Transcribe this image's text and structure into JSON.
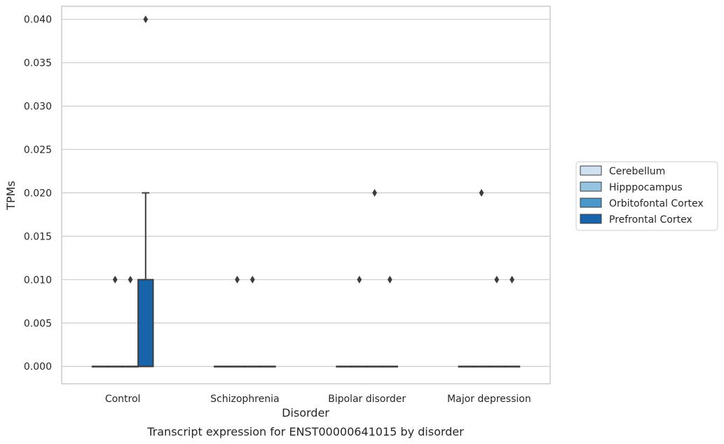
{
  "chart_data": {
    "type": "box",
    "title": "",
    "caption": "Transcript expression for ENST00000641015 by disorder",
    "xlabel": "Disorder",
    "ylabel": "TPMs",
    "categories": [
      "Control",
      "Schizophrenia",
      "Bipolar disorder",
      "Major depression"
    ],
    "ylim": [
      -0.002,
      0.0415
    ],
    "yticks": [
      0.0,
      0.005,
      0.01,
      0.015,
      0.02,
      0.025,
      0.03,
      0.035,
      0.04
    ],
    "ytick_labels": [
      "0.000",
      "0.005",
      "0.010",
      "0.015",
      "0.020",
      "0.025",
      "0.030",
      "0.035",
      "0.040"
    ],
    "grid": "horizontal",
    "legend_position": "right",
    "series": [
      {
        "name": "Cerebellum",
        "color": "#d0e1f2",
        "boxes": [
          {
            "category": "Control",
            "min": 0,
            "q1": 0,
            "median": 0,
            "q3": 0,
            "max": 0,
            "outliers": []
          },
          {
            "category": "Schizophrenia",
            "min": 0,
            "q1": 0,
            "median": 0,
            "q3": 0,
            "max": 0,
            "outliers": []
          },
          {
            "category": "Bipolar disorder",
            "min": 0,
            "q1": 0,
            "median": 0,
            "q3": 0,
            "max": 0,
            "outliers": []
          },
          {
            "category": "Major depression",
            "min": 0,
            "q1": 0,
            "median": 0,
            "q3": 0,
            "max": 0,
            "outliers": []
          }
        ]
      },
      {
        "name": "Hipppocampus",
        "color": "#94c4df",
        "boxes": [
          {
            "category": "Control",
            "min": 0,
            "q1": 0,
            "median": 0,
            "q3": 0,
            "max": 0,
            "outliers": [
              0.01
            ]
          },
          {
            "category": "Schizophrenia",
            "min": 0,
            "q1": 0,
            "median": 0,
            "q3": 0,
            "max": 0,
            "outliers": [
              0.01
            ]
          },
          {
            "category": "Bipolar disorder",
            "min": 0,
            "q1": 0,
            "median": 0,
            "q3": 0,
            "max": 0,
            "outliers": [
              0.01
            ]
          },
          {
            "category": "Major depression",
            "min": 0,
            "q1": 0,
            "median": 0,
            "q3": 0,
            "max": 0,
            "outliers": [
              0.02
            ]
          }
        ]
      },
      {
        "name": "Orbitofontal Cortex",
        "color": "#4a98c9",
        "boxes": [
          {
            "category": "Control",
            "min": 0,
            "q1": 0,
            "median": 0,
            "q3": 0,
            "max": 0,
            "outliers": [
              0.01
            ]
          },
          {
            "category": "Schizophrenia",
            "min": 0,
            "q1": 0,
            "median": 0,
            "q3": 0,
            "max": 0,
            "outliers": [
              0.01
            ]
          },
          {
            "category": "Bipolar disorder",
            "min": 0,
            "q1": 0,
            "median": 0,
            "q3": 0,
            "max": 0,
            "outliers": [
              0.02
            ]
          },
          {
            "category": "Major depression",
            "min": 0,
            "q1": 0,
            "median": 0,
            "q3": 0,
            "max": 0,
            "outliers": [
              0.01
            ]
          }
        ]
      },
      {
        "name": "Prefrontal Cortex",
        "color": "#1764ab",
        "boxes": [
          {
            "category": "Control",
            "min": 0,
            "q1": 0,
            "median": 0,
            "q3": 0.01,
            "max": 0.02,
            "outliers": [
              0.04
            ]
          },
          {
            "category": "Schizophrenia",
            "min": 0,
            "q1": 0,
            "median": 0,
            "q3": 0,
            "max": 0,
            "outliers": []
          },
          {
            "category": "Bipolar disorder",
            "min": 0,
            "q1": 0,
            "median": 0,
            "q3": 0,
            "max": 0,
            "outliers": [
              0.01
            ]
          },
          {
            "category": "Major depression",
            "min": 0,
            "q1": 0,
            "median": 0,
            "q3": 0,
            "max": 0,
            "outliers": [
              0.01
            ]
          }
        ]
      }
    ]
  }
}
